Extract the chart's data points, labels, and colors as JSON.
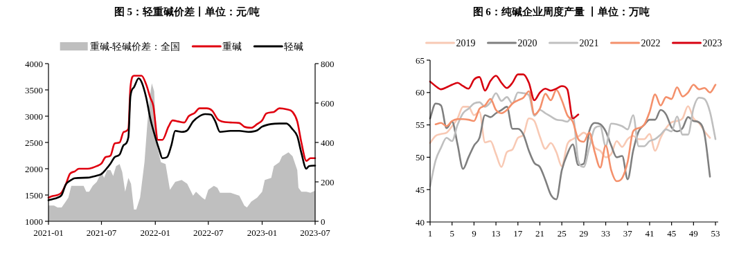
{
  "chart_data": [
    {
      "type": "line",
      "title": "图 5：轻重碱价差丨单位：元/吨",
      "legend": "top",
      "xlim": [
        "2021-01",
        "2023-07"
      ],
      "xticks": [
        "2021-01",
        "2021-07",
        "2022-01",
        "2022-07",
        "2023-01",
        "2023-07"
      ],
      "ylim": [
        1000,
        4000
      ],
      "yticks": [
        1000,
        1500,
        2000,
        2500,
        3000,
        3500,
        4000
      ],
      "y2lim": [
        0,
        800
      ],
      "y2ticks": [
        0,
        200,
        400,
        600,
        800
      ],
      "series": [
        {
          "name": "重碱-轻碱价差：全国",
          "type": "area",
          "axis": "y2",
          "color": "#bfbfbf",
          "x": [
            "2021-01-01",
            "2021-01-20",
            "2021-02-01",
            "2021-02-15",
            "2021-03-01",
            "2021-03-10",
            "2021-03-20",
            "2021-05-01",
            "2021-05-10",
            "2021-05-20",
            "2021-06-01",
            "2021-06-15",
            "2021-07-01",
            "2021-07-10",
            "2021-07-20",
            "2021-08-01",
            "2021-08-10",
            "2021-08-20",
            "2021-09-01",
            "2021-09-10",
            "2021-09-20",
            "2021-10-01",
            "2021-10-10",
            "2021-10-20",
            "2021-10-28",
            "2021-11-10",
            "2021-11-25",
            "2021-12-05",
            "2021-12-15",
            "2021-12-20",
            "2021-12-28",
            "2022-01-05",
            "2022-01-20",
            "2022-02-05",
            "2022-02-20",
            "2022-03-10",
            "2022-04-01",
            "2022-04-20",
            "2022-05-10",
            "2022-05-20",
            "2022-06-10",
            "2022-06-20",
            "2022-07-01",
            "2022-07-20",
            "2022-08-01",
            "2022-08-10",
            "2022-09-15",
            "2022-10-15",
            "2022-11-01",
            "2022-11-10",
            "2022-11-25",
            "2022-12-15",
            "2023-01-01",
            "2023-01-10",
            "2023-02-01",
            "2023-02-10",
            "2023-03-01",
            "2023-03-10",
            "2023-04-01",
            "2023-04-15",
            "2023-05-01",
            "2023-05-05",
            "2023-05-15",
            "2023-06-01",
            "2023-06-15",
            "2023-07-01"
          ],
          "values": [
            80,
            80,
            70,
            70,
            100,
            120,
            180,
            180,
            150,
            150,
            180,
            200,
            250,
            220,
            260,
            260,
            230,
            280,
            290,
            250,
            150,
            220,
            190,
            60,
            60,
            120,
            300,
            500,
            650,
            700,
            660,
            400,
            300,
            290,
            160,
            200,
            210,
            190,
            130,
            150,
            120,
            110,
            160,
            180,
            170,
            145,
            145,
            130,
            80,
            70,
            100,
            120,
            150,
            210,
            220,
            280,
            300,
            330,
            350,
            330,
            260,
            170,
            150,
            150,
            145,
            155
          ]
        },
        {
          "name": "重碱",
          "color": "#e0000f",
          "x": [
            "2021-01-01",
            "2021-01-15",
            "2021-02-01",
            "2021-02-15",
            "2021-03-01",
            "2021-03-15",
            "2021-04-01",
            "2021-04-15",
            "2021-05-15",
            "2021-06-01",
            "2021-06-15",
            "2021-07-01",
            "2021-07-15",
            "2021-08-01",
            "2021-08-15",
            "2021-09-01",
            "2021-09-15",
            "2021-10-01",
            "2021-10-08",
            "2021-10-20",
            "2021-11-15",
            "2021-12-01",
            "2021-12-15",
            "2021-12-25",
            "2022-01-10",
            "2022-01-25",
            "2022-02-15",
            "2022-03-01",
            "2022-03-20",
            "2022-04-10",
            "2022-04-25",
            "2022-05-15",
            "2022-06-01",
            "2022-06-25",
            "2022-07-15",
            "2022-08-01",
            "2022-08-15",
            "2022-09-15",
            "2022-10-15",
            "2022-11-01",
            "2022-11-25",
            "2022-12-15",
            "2023-01-01",
            "2023-01-15",
            "2023-02-10",
            "2023-03-01",
            "2023-03-25",
            "2023-04-15",
            "2023-05-01",
            "2023-05-15",
            "2023-06-01",
            "2023-06-15",
            "2023-07-01"
          ],
          "values": [
            1450,
            1480,
            1500,
            1550,
            1700,
            1900,
            1950,
            2000,
            2000,
            2020,
            2050,
            2100,
            2220,
            2250,
            2480,
            2500,
            2700,
            2760,
            3550,
            3770,
            3770,
            3600,
            3350,
            3200,
            2550,
            2550,
            2800,
            2920,
            2900,
            2880,
            3000,
            3060,
            3150,
            3150,
            3100,
            2950,
            2900,
            2880,
            2870,
            2800,
            2780,
            2850,
            2920,
            3050,
            3080,
            3150,
            3130,
            3080,
            2900,
            2500,
            2150,
            2200,
            2200
          ]
        },
        {
          "name": "轻碱",
          "color": "#000000",
          "x": [
            "2021-01-01",
            "2021-01-15",
            "2021-02-01",
            "2021-02-15",
            "2021-03-01",
            "2021-03-15",
            "2021-04-01",
            "2021-05-15",
            "2021-06-01",
            "2021-06-15",
            "2021-07-01",
            "2021-07-15",
            "2021-08-01",
            "2021-08-15",
            "2021-09-01",
            "2021-09-15",
            "2021-10-01",
            "2021-10-08",
            "2021-10-20",
            "2021-11-05",
            "2021-11-15",
            "2021-12-01",
            "2021-12-15",
            "2022-01-01",
            "2022-01-15",
            "2022-01-25",
            "2022-02-10",
            "2022-02-25",
            "2022-03-10",
            "2022-04-01",
            "2022-04-20",
            "2022-05-10",
            "2022-06-01",
            "2022-06-20",
            "2022-07-10",
            "2022-07-25",
            "2022-08-10",
            "2022-09-15",
            "2022-10-15",
            "2022-11-15",
            "2022-12-15",
            "2023-01-01",
            "2023-02-01",
            "2023-03-01",
            "2023-03-25",
            "2023-04-15",
            "2023-05-01",
            "2023-05-15",
            "2023-06-01",
            "2023-06-10",
            "2023-07-01"
          ],
          "values": [
            1400,
            1420,
            1450,
            1500,
            1700,
            1770,
            1820,
            1830,
            1850,
            1870,
            1900,
            1980,
            2100,
            2220,
            2270,
            2450,
            2600,
            3380,
            3550,
            3720,
            3650,
            3350,
            2950,
            2600,
            2350,
            2200,
            2220,
            2450,
            2720,
            2700,
            2730,
            2900,
            3000,
            3040,
            3030,
            2900,
            2700,
            2720,
            2720,
            2700,
            2730,
            2800,
            2850,
            2860,
            2860,
            2750,
            2620,
            2300,
            2000,
            2050,
            2060
          ]
        }
      ]
    },
    {
      "type": "line",
      "title": "图 6：纯碱企业周度产量 丨单位：万吨",
      "legend": "top",
      "xlim": [
        1,
        53.5
      ],
      "xticks": [
        1,
        5,
        9,
        13,
        17,
        21,
        25,
        29,
        33,
        37,
        41,
        45,
        49,
        53
      ],
      "ylim": [
        40,
        65
      ],
      "yticks": [
        40,
        45,
        50,
        55,
        60,
        65
      ],
      "series": [
        {
          "name": "2019",
          "color": "#f8c9b4",
          "x": [
            1,
            2,
            3,
            4,
            5,
            6,
            7,
            8,
            9,
            10,
            11,
            12,
            13,
            14,
            15,
            16,
            17,
            18,
            19,
            20,
            21,
            22,
            23,
            24,
            25,
            26,
            27,
            28,
            29,
            30,
            31,
            32,
            33,
            34,
            35,
            36,
            37,
            38,
            39,
            40,
            41,
            42,
            43,
            44,
            45,
            46,
            47,
            48,
            49,
            50,
            51,
            52
          ],
          "values": [
            52.2,
            53.3,
            53.6,
            53.8,
            54.8,
            56,
            57.8,
            57.8,
            56.5,
            57,
            52.3,
            52.5,
            50.5,
            48.5,
            50.8,
            51.2,
            53,
            53.5,
            56,
            55.6,
            53.2,
            51.3,
            52.2,
            50.8,
            48.6,
            52,
            52.8,
            53.2,
            53.8,
            53,
            51.5,
            51,
            50,
            50.5,
            52.5,
            51.6,
            52.8,
            53.3,
            52.8,
            52.8,
            53.6,
            51,
            53,
            54.5,
            55.4,
            55.6,
            56,
            57.9,
            56,
            55.3,
            54,
            53
          ]
        },
        {
          "name": "2020",
          "color": "#7f7f7f",
          "x": [
            1,
            2,
            3,
            4,
            5,
            6,
            7,
            8,
            9,
            10,
            11,
            12,
            13,
            14,
            15,
            16,
            17,
            18,
            19,
            20,
            21,
            22,
            23,
            24,
            25,
            26,
            27,
            28,
            29,
            30,
            31,
            32,
            33,
            34,
            35,
            36,
            37,
            38,
            39,
            40,
            41,
            42,
            43,
            44,
            45,
            46,
            47,
            48,
            49,
            50,
            51,
            52
          ],
          "values": [
            56,
            58.3,
            58,
            54.5,
            55.5,
            52,
            48.2,
            50,
            51.8,
            53,
            56.5,
            56.2,
            56.8,
            57.3,
            57.8,
            54.4,
            54.4,
            53.5,
            51,
            49.1,
            48.5,
            46.5,
            44.2,
            43.5,
            48,
            50.5,
            52,
            48.8,
            49,
            54,
            55.3,
            55.1,
            54,
            51.8,
            50,
            50.2,
            46.6,
            51,
            54,
            55,
            55.8,
            55.8,
            57.3,
            56.6,
            54.6,
            54,
            54.5,
            56.2,
            55.6,
            55.4,
            53.6,
            47
          ]
        },
        {
          "name": "2021",
          "color": "#bfbfbf",
          "x": [
            1,
            2,
            3,
            4,
            5,
            6,
            7,
            8,
            9,
            10,
            11,
            12,
            13,
            14,
            15,
            16,
            17,
            18,
            19,
            20,
            21,
            22,
            23,
            24,
            25,
            26,
            27,
            28,
            29,
            30,
            31,
            32,
            33,
            34,
            35,
            36,
            37,
            38,
            39,
            40,
            41,
            42,
            43,
            44,
            45,
            46,
            47,
            48,
            49,
            50,
            51,
            52,
            53
          ],
          "values": [
            45.5,
            49.5,
            51.5,
            53,
            52.5,
            55,
            56.8,
            57.5,
            58.3,
            58.5,
            57.8,
            58.5,
            59.9,
            58.7,
            59.3,
            58.3,
            60,
            59.9,
            59.6,
            56.4,
            57.3,
            56.8,
            56.3,
            55.8,
            55.7,
            55.5,
            56.4,
            49.5,
            48.5,
            51.5,
            54.5,
            54.8,
            51.7,
            55.2,
            55.1,
            54.8,
            54.3,
            56.5,
            51.7,
            51.7,
            52.5,
            52.8,
            53.5,
            54.3,
            54,
            56.3,
            53.5,
            53.5,
            57.6,
            59.2,
            59,
            57,
            52.8
          ]
        },
        {
          "name": "2022",
          "color": "#f4906b",
          "x": [
            2,
            3,
            4,
            5,
            6,
            7,
            8,
            9,
            10,
            11,
            12,
            13,
            14,
            15,
            16,
            17,
            18,
            19,
            20,
            21,
            22,
            23,
            24,
            25,
            26,
            27,
            28,
            29,
            30,
            31,
            32,
            33,
            34,
            35,
            36,
            37,
            38,
            39,
            40,
            41,
            42,
            43,
            44,
            45,
            46,
            47,
            48,
            49,
            50,
            51,
            52,
            53
          ],
          "values": [
            55.1,
            55.3,
            54.8,
            55.6,
            55.9,
            55.9,
            55.8,
            55.6,
            57.5,
            58,
            59,
            57.3,
            56.8,
            57.3,
            58.3,
            58.8,
            59.2,
            60.2,
            56.6,
            57.5,
            59.8,
            58.8,
            60.4,
            58.8,
            56.5,
            55.5,
            52.8,
            52.4,
            53.8,
            50.8,
            48.4,
            51.8,
            48,
            46.3,
            46.8,
            49.3,
            54,
            54.5,
            55,
            57,
            59.7,
            58,
            59.3,
            59,
            60.8,
            59.4,
            60,
            61.2,
            60.5,
            60.7,
            60,
            61.2
          ]
        },
        {
          "name": "2023",
          "color": "#d7000f",
          "x": [
            1,
            2,
            3,
            4,
            5,
            6,
            7,
            8,
            9,
            10,
            11,
            12,
            13,
            14,
            15,
            16,
            17,
            18,
            19,
            20,
            21,
            22,
            23,
            24,
            25,
            26,
            27,
            28
          ],
          "values": [
            61.7,
            61,
            60.5,
            60.8,
            61.2,
            61.5,
            61,
            60.6,
            62,
            62.4,
            60.3,
            61.8,
            62.6,
            61.5,
            60.7,
            61.5,
            62.8,
            62.8,
            61.5,
            58.8,
            60,
            60.6,
            60.3,
            60.6,
            61,
            60.5,
            56,
            56.6
          ]
        }
      ]
    }
  ]
}
